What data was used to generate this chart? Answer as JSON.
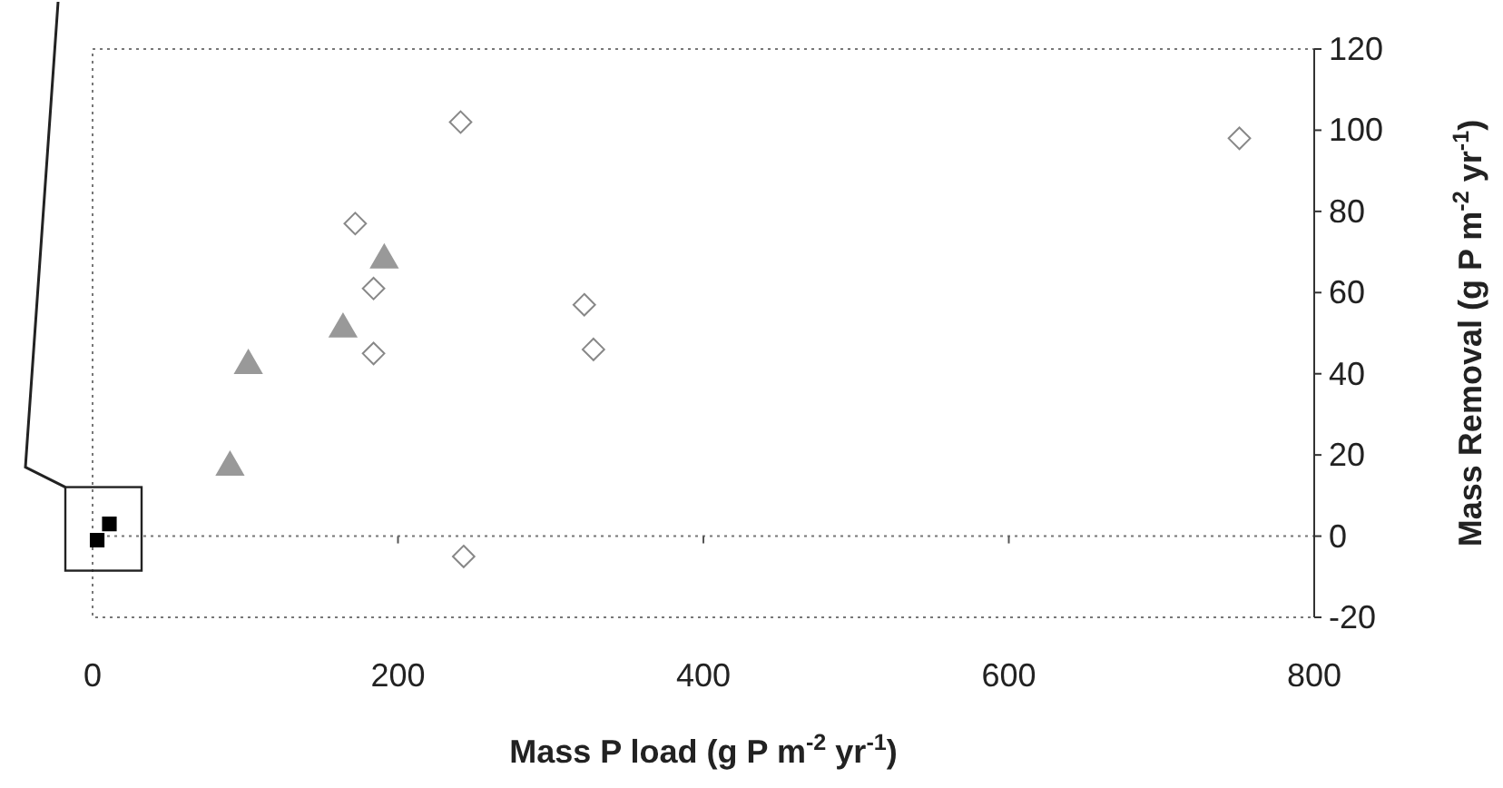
{
  "chart_data": {
    "type": "scatter",
    "xlabel": "Mass P load (g P m$^{-2}$ yr$^{-1}$)",
    "ylabel": "Mass Removal (g P m$^{-2}$ yr$^{-1}$)",
    "xlim": [
      0,
      800
    ],
    "xticks": [
      0,
      200,
      400,
      600,
      800
    ],
    "ylim": [
      -20,
      120
    ],
    "yticks": [
      -20,
      0,
      20,
      40,
      60,
      80,
      100,
      120
    ],
    "grid": false,
    "ref_lines": [
      {
        "axis": "y",
        "value": 0,
        "color": "#777777",
        "line_style": "dotted"
      }
    ],
    "series": [
      {
        "color": "#888888",
        "marker": "diamond",
        "x": [
          241,
          172,
          184,
          184,
          322,
          328,
          243,
          751
        ],
        "values": [
          102,
          77,
          61,
          45,
          57,
          46,
          -5,
          98
        ]
      },
      {
        "color": "#999999",
        "marker": "triangle",
        "x": [
          191,
          164,
          102,
          90
        ],
        "values": [
          68,
          51,
          42,
          17
        ]
      },
      {
        "color": "#000000",
        "marker": "square",
        "x": [
          3,
          11
        ],
        "values": [
          -1,
          3
        ]
      }
    ]
  }
}
